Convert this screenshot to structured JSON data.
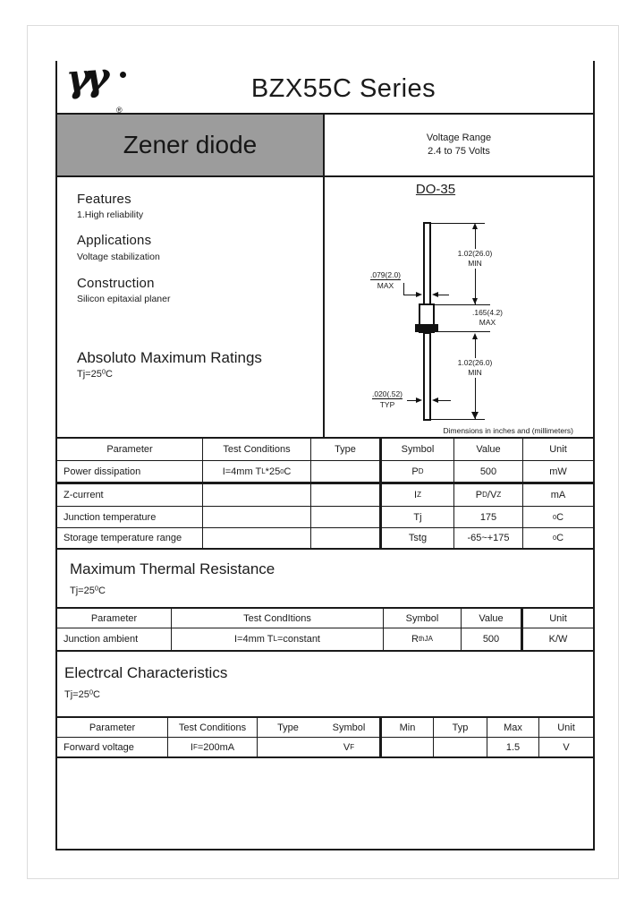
{
  "doc": {
    "title": "BZX55C Series",
    "brand": {
      "registered_mark": "®"
    },
    "banner": {
      "product": "Zener diode",
      "voltage_line1": "Voltage Range",
      "voltage_line2": "2.4 to 75 Volts"
    },
    "colors": {
      "banner_gray": "#9c9c9c",
      "line": "#1a1a1a"
    },
    "sections": {
      "features": {
        "heading": "Features",
        "item1": "1.High reliability"
      },
      "applications": {
        "heading": "Applications",
        "item1": "Voltage stabilization"
      },
      "construction": {
        "heading": "Construction",
        "item1": "Silicon epitaxial planer"
      },
      "abs_max": {
        "heading": "Absoluto Maximum Ratings",
        "condition": "Tj=25^{0}C"
      }
    },
    "package": {
      "name": "DO-35",
      "dims": {
        "body_dia": ".079(2.0)",
        "body_dia_qual": "MAX",
        "lead_top_len": "1.02(26.0)",
        "lead_top_qual": "MIN",
        "body_len": ".165(4.2)",
        "body_len_qual": "MAX",
        "lead_bot_len": "1.02(26.0)",
        "lead_bot_qual": "MIN",
        "lead_dia": ".020(.52)",
        "lead_dia_qual": "TYP"
      },
      "caption": "Dimensions in inches and (millimeters)"
    },
    "tables": {
      "abs_max": {
        "headers": [
          "Parameter",
          "Test Conditions",
          "Type",
          "Symbol",
          "Value",
          "Unit"
        ],
        "rows": [
          [
            "Power dissipation",
            "I=4mm T_{L}*25^{0}C",
            "",
            "P_{D}",
            "500",
            "mW"
          ],
          [
            "Z-current",
            "",
            "",
            "I_{Z}",
            "P_{D}/V_{Z}",
            "mA"
          ],
          [
            "Junction temperature",
            "",
            "",
            "Tj",
            "175",
            "^{0}C"
          ],
          [
            "Storage temperature range",
            "",
            "",
            "Tstg",
            "-65~+175",
            "^{0}C"
          ]
        ]
      },
      "thermal": {
        "title": "Maximum Thermal Resistance",
        "condition": "Tj=25^{0}C",
        "headers": [
          "Parameter",
          "Test CondItions",
          "Symbol",
          "Value",
          "Unit"
        ],
        "rows": [
          [
            "Junction ambient",
            "I=4mm T_{L}=constant",
            "R_{thJA}",
            "500",
            "K/W"
          ]
        ]
      },
      "electrical": {
        "title": "Electrcal Characteristics",
        "condition": "Tj=25^{0}C",
        "headers": [
          "Parameter",
          "Test Conditions",
          "Type",
          "Symbol",
          "Min",
          "Typ",
          "Max",
          "Unit"
        ],
        "rows": [
          [
            "Forward voltage",
            "I_{F}=200mA",
            "",
            "V_{F}",
            "",
            "",
            "1.5",
            "V"
          ]
        ]
      }
    }
  }
}
